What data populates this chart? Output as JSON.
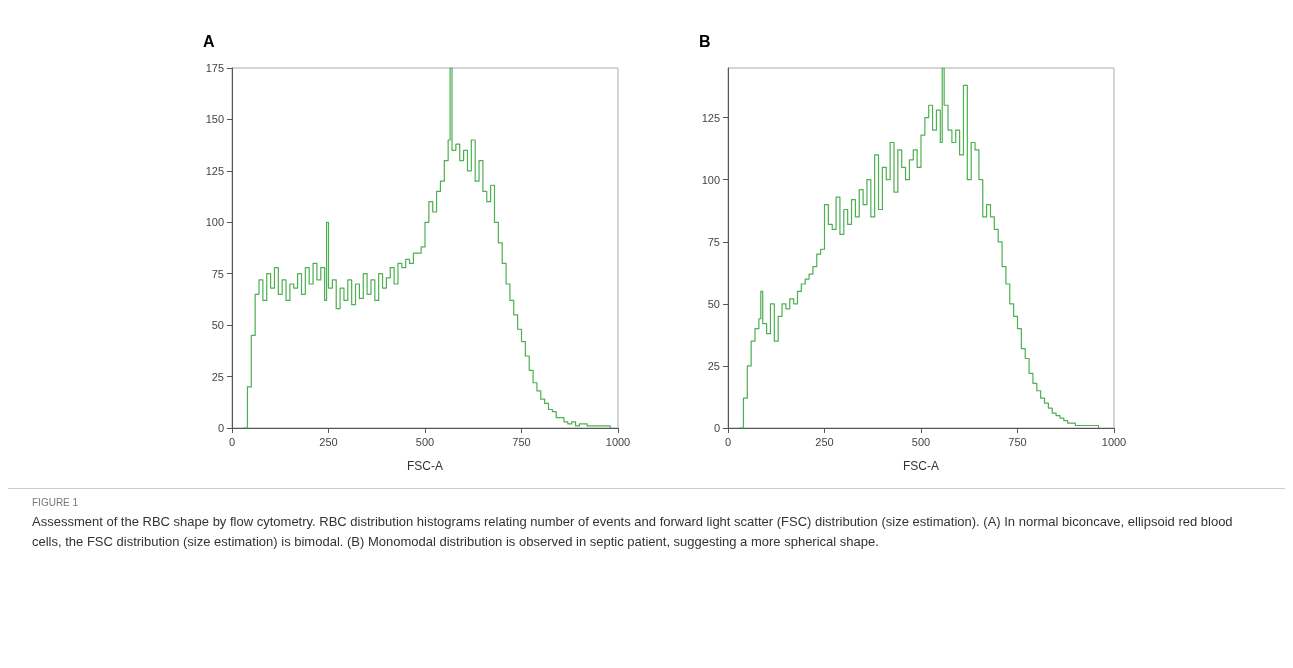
{
  "chart_data": [
    {
      "type": "step",
      "title": "A",
      "xlabel": "FSC-A",
      "xlim": [
        0,
        1000
      ],
      "xticks": [
        0,
        250,
        500,
        750,
        1000
      ],
      "ylim": [
        0,
        175
      ],
      "yticks": [
        0,
        25,
        50,
        75,
        100,
        125,
        150,
        175
      ],
      "grid": false,
      "series": [
        {
          "color": "#4caf50",
          "x": [
            30,
            40,
            50,
            60,
            70,
            80,
            90,
            100,
            110,
            120,
            130,
            140,
            150,
            160,
            170,
            180,
            190,
            200,
            210,
            220,
            230,
            240,
            245,
            250,
            260,
            270,
            280,
            290,
            300,
            310,
            320,
            330,
            340,
            350,
            360,
            370,
            380,
            390,
            400,
            410,
            420,
            430,
            440,
            450,
            460,
            470,
            480,
            490,
            500,
            510,
            520,
            530,
            540,
            550,
            560,
            565,
            570,
            580,
            590,
            600,
            610,
            620,
            630,
            640,
            650,
            660,
            670,
            680,
            690,
            700,
            710,
            720,
            730,
            740,
            750,
            760,
            770,
            780,
            790,
            800,
            810,
            820,
            830,
            840,
            850,
            860,
            870,
            880,
            890,
            900,
            920,
            940,
            960,
            980
          ],
          "values": [
            0,
            20,
            45,
            65,
            72,
            62,
            75,
            68,
            78,
            65,
            72,
            62,
            70,
            68,
            75,
            65,
            78,
            70,
            80,
            72,
            78,
            62,
            100,
            68,
            72,
            58,
            68,
            62,
            72,
            60,
            70,
            63,
            75,
            65,
            72,
            62,
            75,
            68,
            73,
            78,
            70,
            80,
            78,
            82,
            80,
            85,
            85,
            88,
            100,
            110,
            105,
            115,
            120,
            130,
            140,
            175,
            135,
            138,
            130,
            135,
            125,
            140,
            120,
            130,
            115,
            110,
            118,
            100,
            90,
            80,
            70,
            62,
            55,
            48,
            42,
            35,
            28,
            22,
            18,
            14,
            12,
            9,
            8,
            5,
            5,
            3,
            2,
            3,
            1,
            2,
            1,
            1,
            1,
            0
          ]
        }
      ],
      "annotations": [
        "FIGURE 1",
        "Assessment of the RBC shape by flow cytometry. RBC distribution histograms relating number of events and forward light scatter (FSC) distribution (size estimation). (A) In normal biconcave, ellipsoid red blood cells, the FSC distribution (size estimation) is bimodal. (B) Monomodal distribution is observed in septic patient, suggesting a more spherical shape."
      ]
    },
    {
      "type": "step",
      "title": "B",
      "xlabel": "FSC-A",
      "xlim": [
        0,
        1000
      ],
      "xticks": [
        0,
        250,
        500,
        750,
        1000
      ],
      "ylim": [
        0,
        145
      ],
      "yticks": [
        0,
        25,
        50,
        75,
        100,
        125
      ],
      "grid": false,
      "series": [
        {
          "color": "#4caf50",
          "x": [
            30,
            40,
            50,
            60,
            70,
            80,
            85,
            90,
            100,
            110,
            120,
            130,
            140,
            150,
            160,
            170,
            180,
            190,
            200,
            210,
            220,
            230,
            240,
            250,
            260,
            270,
            280,
            290,
            300,
            310,
            320,
            330,
            340,
            350,
            360,
            370,
            380,
            390,
            400,
            410,
            420,
            430,
            440,
            450,
            460,
            470,
            480,
            490,
            500,
            510,
            520,
            530,
            540,
            550,
            555,
            560,
            570,
            580,
            590,
            600,
            610,
            620,
            630,
            640,
            650,
            660,
            670,
            680,
            690,
            700,
            710,
            720,
            730,
            740,
            750,
            760,
            770,
            780,
            790,
            800,
            810,
            820,
            830,
            840,
            850,
            860,
            870,
            880,
            890,
            900,
            920,
            940,
            960
          ],
          "values": [
            0,
            12,
            25,
            35,
            40,
            44,
            55,
            42,
            38,
            50,
            35,
            45,
            50,
            48,
            52,
            50,
            55,
            58,
            60,
            62,
            65,
            70,
            72,
            90,
            82,
            80,
            93,
            78,
            88,
            82,
            92,
            85,
            96,
            90,
            100,
            85,
            110,
            88,
            105,
            100,
            115,
            95,
            112,
            105,
            100,
            108,
            112,
            105,
            118,
            125,
            130,
            120,
            128,
            115,
            145,
            130,
            120,
            115,
            120,
            110,
            138,
            100,
            115,
            112,
            100,
            85,
            90,
            85,
            80,
            75,
            65,
            58,
            50,
            45,
            40,
            32,
            28,
            22,
            18,
            15,
            12,
            10,
            8,
            6,
            5,
            4,
            3,
            2,
            2,
            1,
            1,
            1,
            0
          ]
        }
      ]
    }
  ]
}
